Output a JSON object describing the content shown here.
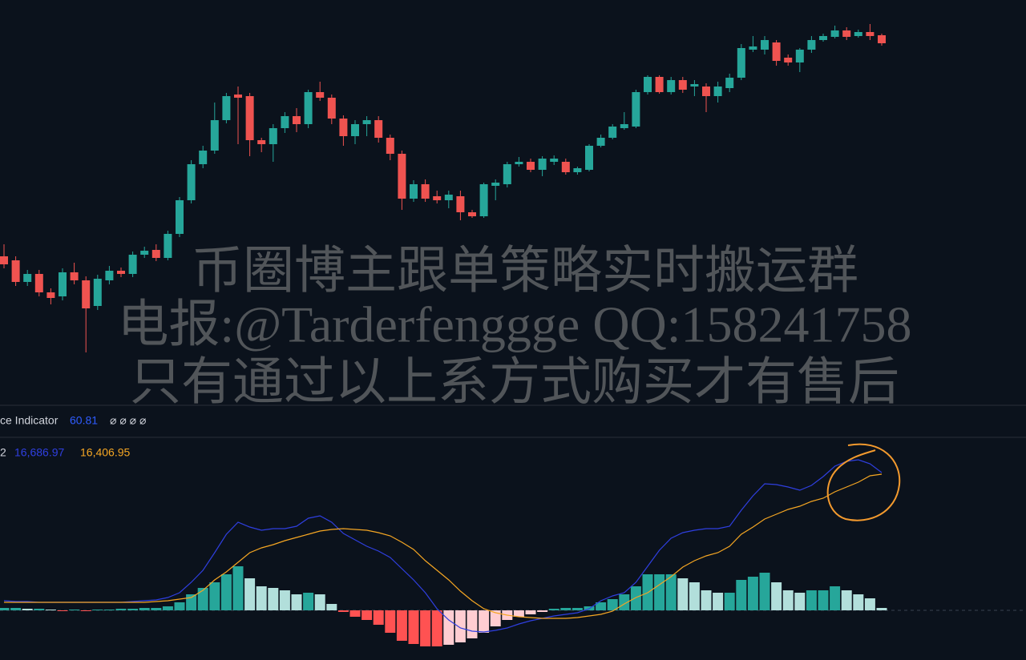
{
  "chart_data": [
    {
      "type": "candlestick",
      "ylim": [
        0,
        500
      ],
      "colors": {
        "up": "#26a69a",
        "down": "#ef5350"
      },
      "ohlc": [
        [
          180,
          195,
          165,
          170
        ],
        [
          175,
          180,
          143,
          148
        ],
        [
          148,
          163,
          143,
          158
        ],
        [
          158,
          163,
          130,
          135
        ],
        [
          135,
          140,
          120,
          128
        ],
        [
          130,
          165,
          125,
          160
        ],
        [
          160,
          172,
          145,
          150
        ],
        [
          150,
          155,
          60,
          115
        ],
        [
          118,
          157,
          113,
          152
        ],
        [
          150,
          168,
          145,
          162
        ],
        [
          162,
          166,
          154,
          158
        ],
        [
          158,
          186,
          154,
          182
        ],
        [
          182,
          192,
          178,
          187
        ],
        [
          188,
          195,
          174,
          178
        ],
        [
          178,
          212,
          175,
          208
        ],
        [
          208,
          254,
          204,
          250
        ],
        [
          250,
          300,
          246,
          295
        ],
        [
          295,
          318,
          290,
          312
        ],
        [
          312,
          372,
          308,
          350
        ],
        [
          350,
          384,
          346,
          380
        ],
        [
          382,
          392,
          320,
          378
        ],
        [
          380,
          384,
          305,
          325
        ],
        [
          325,
          328,
          310,
          320
        ],
        [
          320,
          345,
          298,
          340
        ],
        [
          340,
          360,
          334,
          355
        ],
        [
          355,
          365,
          335,
          345
        ],
        [
          345,
          388,
          340,
          385
        ],
        [
          385,
          398,
          374,
          378
        ],
        [
          378,
          382,
          345,
          352
        ],
        [
          352,
          356,
          318,
          330
        ],
        [
          330,
          350,
          320,
          345
        ],
        [
          345,
          355,
          330,
          350
        ],
        [
          350,
          355,
          322,
          328
        ],
        [
          328,
          332,
          300,
          308
        ],
        [
          308,
          312,
          238,
          252
        ],
        [
          252,
          275,
          248,
          270
        ],
        [
          270,
          276,
          248,
          252
        ],
        [
          255,
          262,
          246,
          250
        ],
        [
          250,
          262,
          240,
          257
        ],
        [
          255,
          262,
          225,
          235
        ],
        [
          235,
          238,
          228,
          230
        ],
        [
          230,
          272,
          228,
          270
        ],
        [
          268,
          276,
          250,
          272
        ],
        [
          270,
          298,
          266,
          295
        ],
        [
          295,
          304,
          292,
          298
        ],
        [
          298,
          302,
          285,
          288
        ],
        [
          288,
          305,
          280,
          302
        ],
        [
          298,
          306,
          294,
          302
        ],
        [
          298,
          302,
          282,
          285
        ],
        [
          285,
          292,
          282,
          290
        ],
        [
          288,
          320,
          286,
          318
        ],
        [
          318,
          332,
          316,
          328
        ],
        [
          328,
          345,
          326,
          342
        ],
        [
          340,
          360,
          338,
          345
        ],
        [
          342,
          388,
          340,
          385
        ],
        [
          385,
          406,
          382,
          404
        ],
        [
          404,
          406,
          383,
          385
        ],
        [
          385,
          404,
          382,
          400
        ],
        [
          400,
          404,
          384,
          388
        ],
        [
          392,
          400,
          380,
          395
        ],
        [
          392,
          396,
          360,
          380
        ],
        [
          380,
          398,
          372,
          392
        ],
        [
          390,
          408,
          385,
          403
        ],
        [
          403,
          445,
          400,
          440
        ],
        [
          438,
          455,
          435,
          442
        ],
        [
          438,
          455,
          432,
          450
        ],
        [
          447,
          450,
          418,
          424
        ],
        [
          428,
          432,
          418,
          422
        ],
        [
          422,
          440,
          410,
          438
        ],
        [
          438,
          455,
          434,
          450
        ],
        [
          450,
          458,
          448,
          455
        ],
        [
          454,
          468,
          452,
          462
        ],
        [
          462,
          466,
          450,
          454
        ],
        [
          455,
          463,
          453,
          460
        ],
        [
          460,
          470,
          450,
          455
        ],
        [
          456,
          458,
          443,
          446
        ]
      ]
    },
    {
      "type": "macd",
      "ylim": [
        -62,
        216
      ],
      "histogram": {
        "colors": [
          "#26a69a",
          "#b2dfdb",
          "#ff5252",
          "#ffcdd2"
        ],
        "values": [
          3,
          3,
          2,
          2,
          1,
          -1,
          1,
          -1,
          1,
          1,
          2,
          2,
          3,
          3,
          5,
          10,
          20,
          28,
          35,
          45,
          55,
          40,
          30,
          28,
          25,
          20,
          22,
          20,
          8,
          -2,
          -8,
          -12,
          -18,
          -28,
          -38,
          -42,
          -45,
          -45,
          -43,
          -40,
          -35,
          -28,
          -20,
          -12,
          -8,
          -5,
          -2,
          2,
          3,
          3,
          5,
          10,
          14,
          20,
          30,
          45,
          45,
          45,
          40,
          35,
          25,
          22,
          22,
          38,
          42,
          47,
          35,
          25,
          22,
          25,
          25,
          30,
          25,
          20,
          15,
          3
        ]
      },
      "series": [
        {
          "color": "#2f3fe0",
          "values": [
            12,
            11,
            11,
            10,
            10,
            10,
            10,
            10,
            10,
            10,
            10,
            11,
            12,
            13,
            16,
            22,
            35,
            50,
            72,
            95,
            110,
            104,
            100,
            102,
            102,
            105,
            115,
            118,
            110,
            96,
            88,
            80,
            74,
            66,
            52,
            38,
            22,
            2,
            -12,
            -22,
            -26,
            -27,
            -25,
            -22,
            -17,
            -13,
            -10,
            -7,
            -5,
            -3,
            2,
            12,
            18,
            22,
            35,
            55,
            75,
            90,
            97,
            100,
            102,
            102,
            105,
            125,
            143,
            158,
            157,
            154,
            150,
            156,
            167,
            180,
            186,
            188,
            183,
            172
          ]
        },
        {
          "color": "#f5a623",
          "values": [
            10,
            10,
            10,
            10,
            10,
            10,
            10,
            10,
            10,
            10,
            10,
            10,
            10,
            11,
            12,
            14,
            16,
            25,
            38,
            48,
            60,
            72,
            78,
            82,
            87,
            91,
            95,
            99,
            101,
            102,
            101,
            100,
            97,
            93,
            85,
            76,
            62,
            50,
            38,
            24,
            12,
            2,
            -3,
            -6,
            -8,
            -9,
            -10,
            -10,
            -10,
            -9,
            -7,
            -5,
            -1,
            8,
            16,
            22,
            32,
            42,
            54,
            62,
            68,
            72,
            80,
            95,
            104,
            114,
            120,
            126,
            130,
            136,
            140,
            148,
            154,
            160,
            168,
            170
          ]
        }
      ]
    }
  ],
  "indicators": {
    "first": {
      "name": "ce Indicator",
      "value": "60.81",
      "extra": "⌀ ⌀ ⌀ ⌀"
    },
    "second": {
      "name": "2",
      "macd": "16,686.97",
      "signal": "16,406.95"
    }
  },
  "watermark": [
    "币圈博主跟单策略实时搬运群",
    "电报:@Tarderfenggge QQ:158241758",
    "只有通过以上系方式购买才有售后"
  ]
}
